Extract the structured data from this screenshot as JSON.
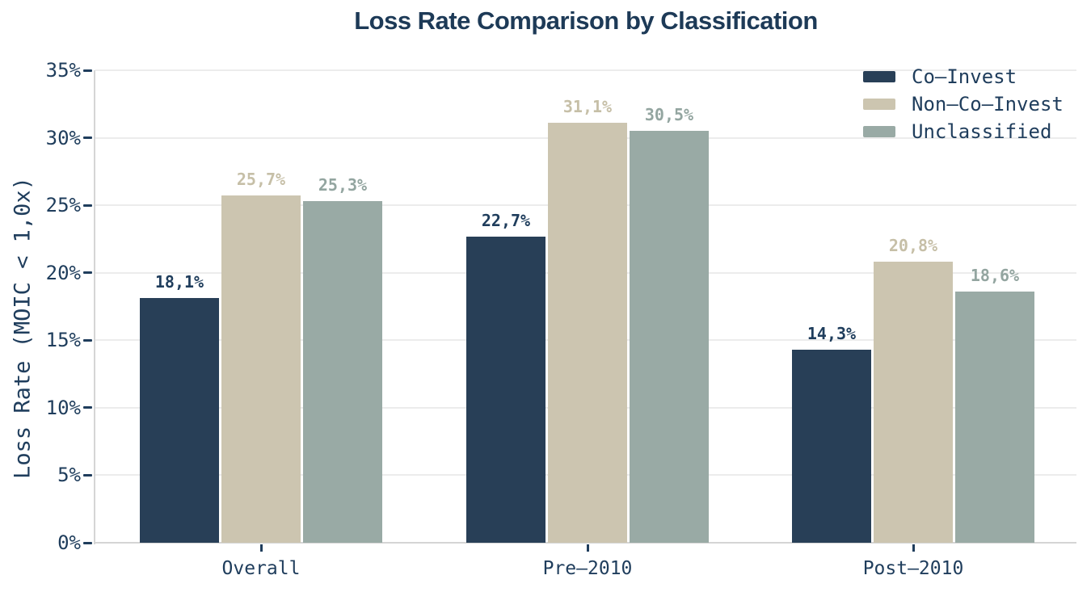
{
  "title": "Loss Rate Comparison by Classification",
  "chart_data": {
    "type": "bar",
    "categories": [
      "Overall",
      "Pre–2010",
      "Post–2010"
    ],
    "series": [
      {
        "name": "Co–Invest",
        "color": "#283F57",
        "values": [
          18.1,
          22.7,
          14.3
        ],
        "value_labels": [
          "18,1%",
          "22,7%",
          "14,3%"
        ],
        "label_color": "#1F3D5C"
      },
      {
        "name": "Non–Co–Invest",
        "color": "#CCC5B0",
        "values": [
          25.7,
          31.1,
          20.8
        ],
        "value_labels": [
          "25,7%",
          "31,1%",
          "20,8%"
        ],
        "label_color": "#C6BFA7"
      },
      {
        "name": "Unclassified",
        "color": "#99AAA5",
        "values": [
          25.3,
          30.5,
          18.6
        ],
        "value_labels": [
          "25,3%",
          "30,5%",
          "18,6%"
        ],
        "label_color": "#93A5A0"
      }
    ],
    "ylabel": "Loss Rate (MOIC < 1,0x)",
    "xlabel": "",
    "ylim": [
      0,
      35
    ],
    "ytick_step": 5,
    "ytick_labels": [
      "0%",
      "5%",
      "10%",
      "15%",
      "20%",
      "25%",
      "30%",
      "35%"
    ],
    "grid": true,
    "legend_position": "upper-right"
  },
  "colors": {
    "title_text": "#1D3A57",
    "axis_text": "#1F3D5C",
    "gridline": "#ECECEC",
    "axis_line": "#D5D5D5",
    "background": "#FFFFFF"
  }
}
